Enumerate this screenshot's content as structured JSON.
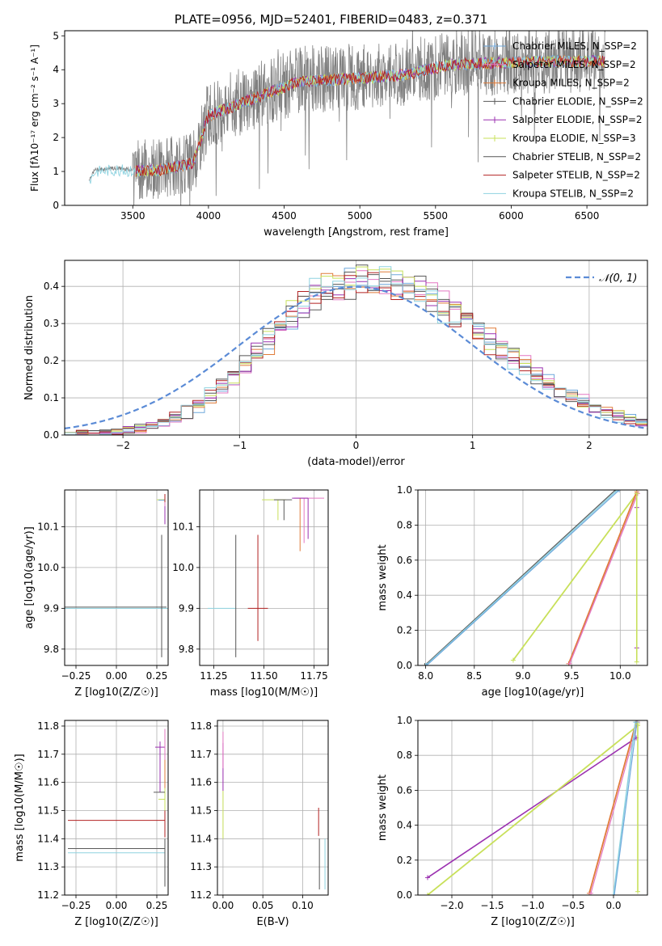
{
  "figure_title": "PLATE=0956, MJD=52401, FIBERID=0483, z=0.371",
  "colors": {
    "chabrier_miles": "#6fa8dc",
    "salpeter_miles": "#e377c2",
    "kroupa_miles": "#e07b39",
    "chabrier_elodie": "#5a5a5a",
    "salpeter_elodie": "#9b30b0",
    "kroupa_elodie": "#c8e05a",
    "chabrier_stelib": "#555555",
    "salpeter_stelib": "#b22222",
    "kroupa_stelib": "#8fd3e0",
    "data": "#808080",
    "normal": "#5b8bd6"
  },
  "chart_data": [
    {
      "id": "spectrum",
      "type": "line",
      "xlabel": "wavelength [Angstrom, rest frame]",
      "ylabel": "Flux [fλ10⁻¹⁷ erg cm⁻² s⁻¹ A⁻¹]",
      "xlim": [
        3050,
        6900
      ],
      "ylim": [
        0,
        5.15
      ],
      "xticks": [
        3500,
        4000,
        4500,
        5000,
        5500,
        6000,
        6500
      ],
      "yticks": [
        0,
        1,
        2,
        3,
        4,
        5
      ],
      "grid": false,
      "legend_position": "top-right",
      "legend": [
        "Chabrier MILES, N_SSP=2",
        "Salpeter MILES, N_SSP=2",
        "Kroupa MILES, N_SSP=2",
        "Chabrier ELODIE, N_SSP=2",
        "Salpeter ELODIE, N_SSP=2",
        "Kroupa ELODIE, N_SSP=3",
        "Chabrier STELIB, N_SSP=2",
        "Salpeter STELIB, N_SSP=2",
        "Kroupa STELIB, N_SSP=2"
      ],
      "continuum_points": [
        {
          "x": 3210,
          "y": 0.75
        },
        {
          "x": 3250,
          "y": 1.05
        },
        {
          "x": 3400,
          "y": 1.1
        },
        {
          "x": 3500,
          "y": 1.05
        },
        {
          "x": 3700,
          "y": 1.1
        },
        {
          "x": 3900,
          "y": 1.3
        },
        {
          "x": 4000,
          "y": 2.7
        },
        {
          "x": 4300,
          "y": 3.2
        },
        {
          "x": 4600,
          "y": 3.7
        },
        {
          "x": 5000,
          "y": 3.8
        },
        {
          "x": 5300,
          "y": 3.9
        },
        {
          "x": 5600,
          "y": 4.2
        },
        {
          "x": 5900,
          "y": 4.25
        },
        {
          "x": 6300,
          "y": 4.3
        },
        {
          "x": 6600,
          "y": 4.3
        }
      ]
    },
    {
      "id": "residuals",
      "type": "histogram",
      "xlabel": "(data-model)/error",
      "ylabel": "Normed distribution",
      "xlim": [
        -2.5,
        2.5
      ],
      "ylim": [
        0,
        0.47
      ],
      "xticks": [
        -2,
        -1,
        0,
        1,
        2
      ],
      "yticks": [
        0.0,
        0.1,
        0.2,
        0.3,
        0.4
      ],
      "grid": true,
      "legend": [
        "𝒩(0, 1)"
      ],
      "legend_position": "top-right"
    },
    {
      "id": "age_vs_Z",
      "type": "errorbar",
      "xlabel": "Z [log10(Z/Z☉)]",
      "ylabel": "age  [log10(age/yr)]",
      "xlim": [
        -0.32,
        0.32
      ],
      "ylim": [
        9.76,
        10.19
      ],
      "xticks": [
        -0.25,
        0.0,
        0.25
      ],
      "yticks": [
        9.8,
        9.9,
        10.0,
        10.1
      ],
      "grid": true
    },
    {
      "id": "age_vs_mass",
      "type": "errorbar",
      "xlabel": "mass [log10(M/M☉)]",
      "ylabel": "",
      "xlim": [
        11.18,
        11.82
      ],
      "ylim": [
        9.76,
        10.19
      ],
      "xticks": [
        11.25,
        11.5,
        11.75
      ],
      "yticks": [
        9.8,
        9.9,
        10.0,
        10.1
      ],
      "grid": true
    },
    {
      "id": "weight_vs_age",
      "type": "line",
      "xlabel": "age  [log10(age/yr)]",
      "ylabel": "mass weight",
      "xlim": [
        7.92,
        10.28
      ],
      "ylim": [
        0,
        1.0
      ],
      "xticks": [
        8.0,
        8.5,
        9.0,
        9.5,
        10.0
      ],
      "yticks": [
        0.0,
        0.2,
        0.4,
        0.6,
        0.8,
        1.0
      ],
      "grid": true
    },
    {
      "id": "mass_vs_Z",
      "type": "errorbar",
      "xlabel": "Z [log10(Z/Z☉)]",
      "ylabel": "mass [log10(M/M☉)]",
      "xlim": [
        -0.32,
        0.32
      ],
      "ylim": [
        11.2,
        11.82
      ],
      "xticks": [
        -0.25,
        0.0,
        0.25
      ],
      "yticks": [
        11.2,
        11.3,
        11.4,
        11.5,
        11.6,
        11.7,
        11.8
      ],
      "grid": true
    },
    {
      "id": "mass_vs_ebv",
      "type": "errorbar",
      "xlabel": "E(B-V)",
      "ylabel": "",
      "xlim": [
        -0.007,
        0.132
      ],
      "ylim": [
        11.2,
        11.82
      ],
      "xticks": [
        0.0,
        0.05,
        0.1
      ],
      "yticks": [
        11.2,
        11.3,
        11.4,
        11.5,
        11.6,
        11.7,
        11.8
      ],
      "grid": true
    },
    {
      "id": "weight_vs_Z",
      "type": "line",
      "xlabel": "Z [log10(Z/Z☉)]",
      "ylabel": "mass weight",
      "xlim": [
        -2.42,
        0.42
      ],
      "ylim": [
        0,
        1.0
      ],
      "xticks": [
        -2.0,
        -1.5,
        -1.0,
        -0.5,
        0.0
      ],
      "yticks": [
        0.0,
        0.2,
        0.4,
        0.6,
        0.8,
        1.0
      ],
      "grid": true
    }
  ]
}
